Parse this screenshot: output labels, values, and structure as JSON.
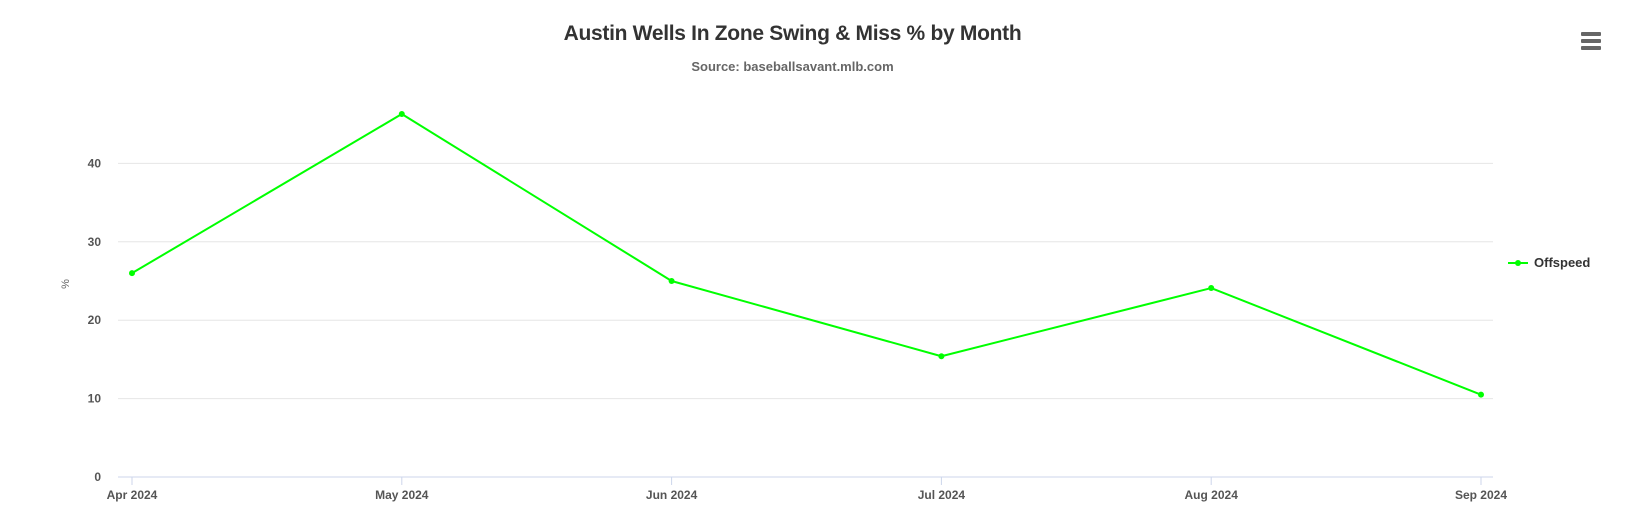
{
  "chart_data": {
    "type": "line",
    "title": "Austin Wells In Zone Swing & Miss % by Month",
    "subtitle": "Source: baseballsavant.mlb.com",
    "xlabel": "",
    "ylabel": "%",
    "categories": [
      "Apr 2024",
      "May 2024",
      "Jun 2024",
      "Jul 2024",
      "Aug 2024",
      "Sep 2024"
    ],
    "series": [
      {
        "name": "Offspeed",
        "color": "#00ff00",
        "values": [
          26.0,
          46.3,
          25.0,
          15.4,
          24.1,
          10.5
        ]
      }
    ],
    "ylim": [
      0,
      50
    ],
    "yticks": [
      0,
      10,
      20,
      30,
      40
    ],
    "grid": true,
    "legend_position": "right"
  },
  "menu_icon": "hamburger-menu-icon"
}
